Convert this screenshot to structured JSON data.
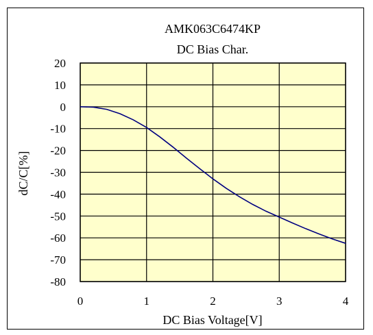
{
  "chart_data": {
    "type": "line",
    "title": "AMK063C6474KP",
    "subtitle": "DC Bias Char.",
    "xlabel": "DC Bias Voltage[V]",
    "ylabel": "dC/C[%]",
    "xlim": [
      0,
      4
    ],
    "ylim": [
      -80,
      20
    ],
    "xticks": [
      "0",
      "1",
      "2",
      "3",
      "4"
    ],
    "yticks": [
      "20",
      "10",
      "0",
      "-10",
      "-20",
      "-30",
      "-40",
      "-50",
      "-60",
      "-70",
      "-80"
    ],
    "grid": true,
    "legend": "none",
    "colors": {
      "plot_bg": "#ffffcc",
      "line": "#000080",
      "grid": "#000000"
    },
    "series": [
      {
        "x": [
          0,
          0.2,
          0.4,
          0.6,
          0.8,
          1.0,
          1.2,
          1.4,
          1.6,
          1.8,
          2.0,
          2.2,
          2.4,
          2.6,
          2.8,
          3.0,
          3.2,
          3.4,
          3.6,
          3.8,
          4.0
        ],
        "values": [
          0,
          -0.2,
          -1.2,
          -3.2,
          -6.0,
          -9.5,
          -13.8,
          -18.5,
          -23.5,
          -28.3,
          -33.0,
          -37.3,
          -41.2,
          -44.7,
          -47.8,
          -50.5,
          -53.2,
          -55.8,
          -58.2,
          -60.5,
          -62.5
        ]
      }
    ]
  }
}
